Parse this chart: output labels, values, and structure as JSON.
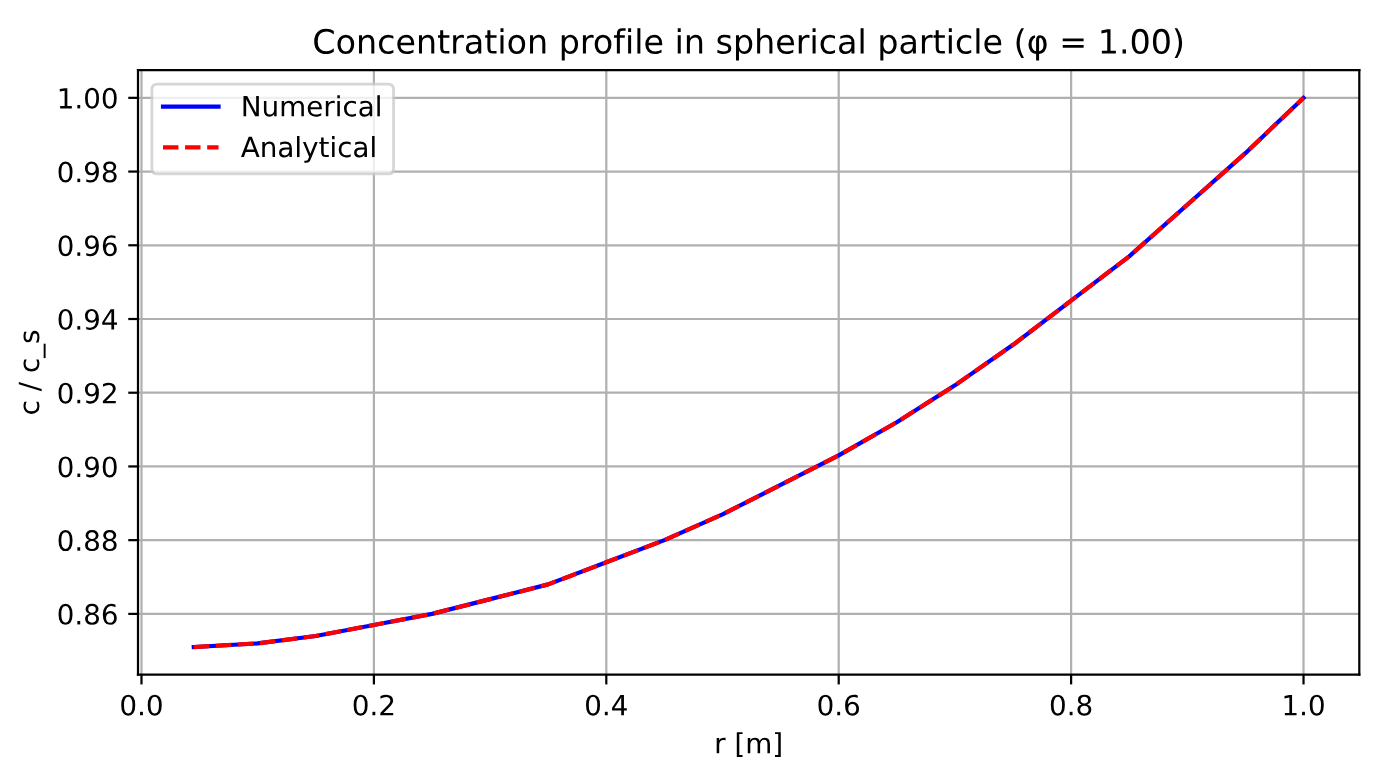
{
  "chart_data": {
    "type": "line",
    "title": "Concentration profile in spherical particle (φ = 1.00)",
    "xlabel": "r [m]",
    "ylabel": "c / c_s",
    "x": [
      0.045,
      0.1,
      0.15,
      0.2,
      0.25,
      0.3,
      0.35,
      0.4,
      0.45,
      0.5,
      0.55,
      0.6,
      0.65,
      0.7,
      0.75,
      0.8,
      0.85,
      0.9,
      0.95,
      1.0
    ],
    "series": [
      {
        "name": "Numerical",
        "color": "#0000ff",
        "line_style": "solid",
        "values": [
          0.851,
          0.852,
          0.854,
          0.857,
          0.86,
          0.864,
          0.868,
          0.874,
          0.88,
          0.887,
          0.895,
          0.903,
          0.912,
          0.922,
          0.933,
          0.945,
          0.957,
          0.971,
          0.985,
          1.0
        ]
      },
      {
        "name": "Analytical",
        "color": "#ff0000",
        "line_style": "dashed",
        "values": [
          0.851,
          0.852,
          0.854,
          0.857,
          0.86,
          0.864,
          0.868,
          0.874,
          0.88,
          0.887,
          0.895,
          0.903,
          0.912,
          0.922,
          0.933,
          0.945,
          0.957,
          0.971,
          0.985,
          1.0
        ]
      }
    ],
    "xlim": [
      -0.003,
      1.048
    ],
    "ylim": [
      0.8435,
      1.0075
    ],
    "xticks": [
      {
        "value": 0,
        "label": "0.0"
      },
      {
        "value": 0.2,
        "label": "0.2"
      },
      {
        "value": 0.4,
        "label": "0.4"
      },
      {
        "value": 0.6,
        "label": "0.6"
      },
      {
        "value": 0.8,
        "label": "0.8"
      },
      {
        "value": 1.0,
        "label": "1.0"
      }
    ],
    "yticks": [
      {
        "value": 0.86,
        "label": "0.86"
      },
      {
        "value": 0.88,
        "label": "0.88"
      },
      {
        "value": 0.9,
        "label": "0.90"
      },
      {
        "value": 0.92,
        "label": "0.92"
      },
      {
        "value": 0.94,
        "label": "0.94"
      },
      {
        "value": 0.96,
        "label": "0.96"
      },
      {
        "value": 0.98,
        "label": "0.98"
      },
      {
        "value": 1.0,
        "label": "1.00"
      }
    ],
    "grid": true,
    "legend": "top left",
    "marker": "none"
  }
}
